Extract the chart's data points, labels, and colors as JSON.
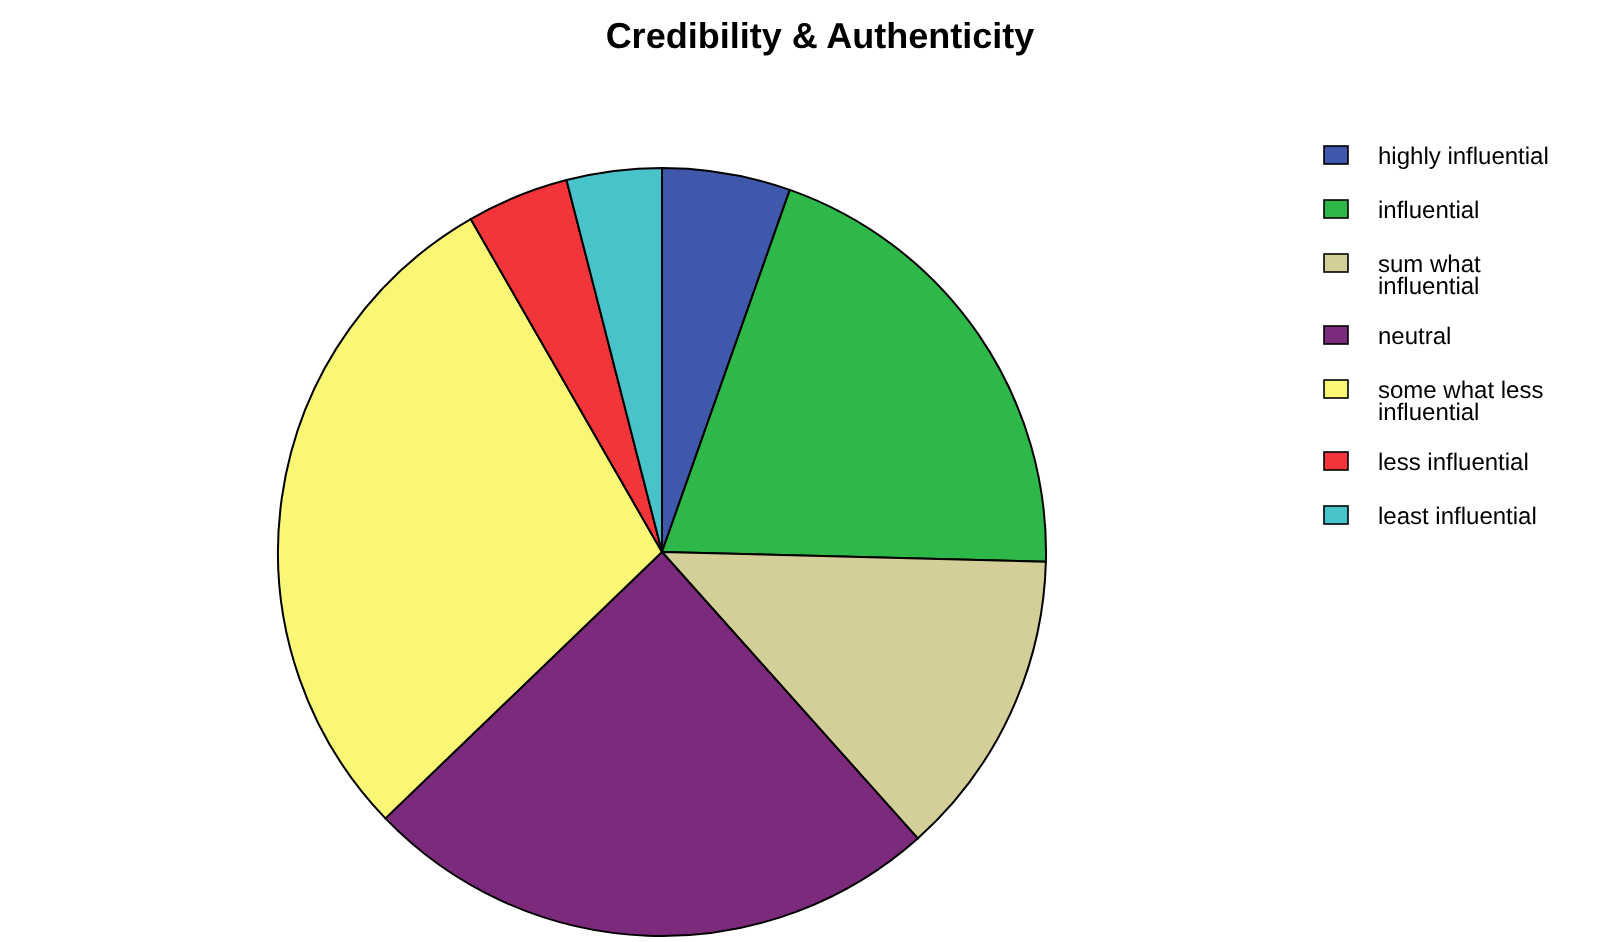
{
  "chart_data": {
    "type": "pie",
    "title": "Credibility & Authenticity",
    "categories": [
      "highly influential",
      "influential",
      "sum what influential",
      "neutral",
      "some what less influential",
      "less influential",
      "least influential"
    ],
    "values": [
      5.4,
      20,
      13,
      24.4,
      28.9,
      4.3,
      4.0
    ],
    "colors": [
      "#3f58ab",
      "#2fb84a",
      "#d4cf99",
      "#7b2a7c",
      "#fbf776",
      "#f2353a",
      "#48c3c9"
    ],
    "legend": "top right"
  }
}
